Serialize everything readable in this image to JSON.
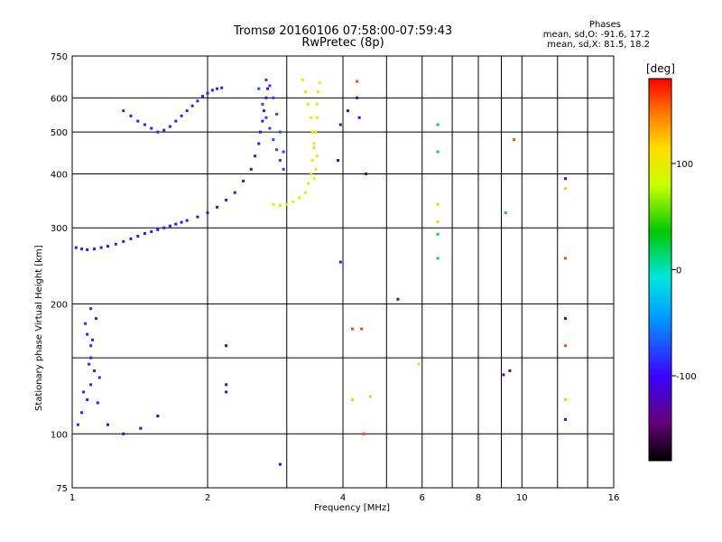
{
  "header": {
    "title_line1": "Tromsø 20160106 07:58:00-07:59:43",
    "title_line2": "RwPretec (8p)",
    "stats_title": "Phases",
    "stats_line1": "mean, sd,O: -91.6, 17.2",
    "stats_line2": "mean, sd,X:  81.5, 18.2"
  },
  "colorbar": {
    "title": "[deg]",
    "range": [
      -180,
      180
    ],
    "ticks": [
      100,
      0,
      -100
    ]
  },
  "chart_data": {
    "type": "scatter",
    "xlabel": "Frequency [MHz]",
    "ylabel": "Stationary phase Virtual Height [km]",
    "x_scale": "log",
    "y_scale": "log",
    "xlim": [
      1,
      16
    ],
    "ylim": [
      75,
      750
    ],
    "x_ticks": [
      1,
      2,
      4,
      6,
      8,
      10,
      16
    ],
    "x_minor_lines": [
      3,
      5,
      7,
      9,
      12,
      14
    ],
    "y_ticks": [
      75,
      100,
      200,
      300,
      400,
      500,
      600,
      750
    ],
    "y_minor_lines": [
      150
    ],
    "grid": true,
    "series": [
      {
        "color_phase": -95,
        "points": [
          [
            1.02,
            270
          ],
          [
            1.05,
            268
          ],
          [
            1.08,
            267
          ],
          [
            1.12,
            268
          ],
          [
            1.16,
            270
          ],
          [
            1.2,
            272
          ],
          [
            1.25,
            275
          ],
          [
            1.3,
            279
          ],
          [
            1.35,
            283
          ],
          [
            1.4,
            287
          ],
          [
            1.45,
            291
          ],
          [
            1.5,
            294
          ],
          [
            1.55,
            297
          ],
          [
            1.6,
            300
          ],
          [
            1.65,
            303
          ],
          [
            1.7,
            306
          ],
          [
            1.75,
            309
          ],
          [
            1.8,
            312
          ],
          [
            1.9,
            318
          ],
          [
            2.0,
            325
          ],
          [
            2.1,
            335
          ],
          [
            2.2,
            348
          ],
          [
            2.3,
            362
          ],
          [
            2.4,
            385
          ],
          [
            2.5,
            410
          ],
          [
            2.55,
            440
          ],
          [
            2.6,
            470
          ],
          [
            2.62,
            500
          ],
          [
            2.65,
            530
          ],
          [
            2.67,
            560
          ],
          [
            2.7,
            600
          ],
          [
            2.72,
            630
          ]
        ]
      },
      {
        "color_phase": -90,
        "points": [
          [
            1.3,
            560
          ],
          [
            1.35,
            545
          ],
          [
            1.4,
            530
          ],
          [
            1.45,
            520
          ],
          [
            1.5,
            510
          ],
          [
            1.55,
            500
          ],
          [
            1.6,
            505
          ],
          [
            1.65,
            515
          ],
          [
            1.7,
            530
          ],
          [
            1.75,
            545
          ],
          [
            1.8,
            560
          ],
          [
            1.85,
            575
          ],
          [
            1.9,
            590
          ],
          [
            1.95,
            605
          ],
          [
            2.0,
            615
          ],
          [
            2.05,
            625
          ],
          [
            2.1,
            630
          ],
          [
            2.15,
            633
          ]
        ]
      },
      {
        "color_phase": -88,
        "points": [
          [
            1.07,
            180
          ],
          [
            1.08,
            170
          ],
          [
            1.1,
            160
          ],
          [
            1.1,
            150
          ],
          [
            1.12,
            140
          ],
          [
            1.1,
            130
          ],
          [
            1.08,
            120
          ],
          [
            1.05,
            112
          ],
          [
            1.03,
            105
          ],
          [
            1.06,
            125
          ],
          [
            1.09,
            145
          ],
          [
            1.11,
            165
          ],
          [
            1.13,
            185
          ],
          [
            1.1,
            195
          ],
          [
            1.15,
            135
          ],
          [
            1.14,
            118
          ]
        ]
      },
      {
        "color_phase": -75,
        "points": [
          [
            2.6,
            630
          ],
          [
            2.65,
            580
          ],
          [
            2.7,
            540
          ],
          [
            2.75,
            510
          ],
          [
            2.8,
            480
          ],
          [
            2.85,
            455
          ],
          [
            2.9,
            430
          ],
          [
            2.95,
            410
          ],
          [
            2.95,
            450
          ],
          [
            2.9,
            500
          ],
          [
            2.85,
            550
          ],
          [
            2.8,
            600
          ],
          [
            2.75,
            640
          ],
          [
            2.7,
            660
          ]
        ]
      },
      {
        "color_phase": 95,
        "points": [
          [
            2.8,
            340
          ],
          [
            2.9,
            338
          ],
          [
            3.0,
            340
          ],
          [
            3.1,
            345
          ],
          [
            3.2,
            352
          ],
          [
            3.3,
            362
          ],
          [
            3.35,
            380
          ],
          [
            3.4,
            400
          ],
          [
            3.42,
            430
          ],
          [
            3.45,
            460
          ],
          [
            3.48,
            500
          ],
          [
            3.5,
            540
          ],
          [
            3.5,
            580
          ],
          [
            3.52,
            620
          ],
          [
            3.55,
            650
          ]
        ]
      },
      {
        "color_phase": 110,
        "points": [
          [
            3.25,
            660
          ],
          [
            3.3,
            620
          ],
          [
            3.35,
            580
          ],
          [
            3.4,
            540
          ],
          [
            3.42,
            500
          ],
          [
            3.45,
            470
          ],
          [
            3.5,
            440
          ],
          [
            3.48,
            410
          ],
          [
            3.45,
            390
          ]
        ]
      },
      {
        "color_phase": -120,
        "points": [
          [
            1.2,
            105
          ],
          [
            1.3,
            100
          ],
          [
            1.42,
            103
          ],
          [
            1.55,
            110
          ],
          [
            2.2,
            160
          ],
          [
            2.2,
            130
          ],
          [
            2.2,
            125
          ],
          [
            2.9,
            85
          ],
          [
            3.95,
            250
          ],
          [
            3.9,
            430
          ],
          [
            4.3,
            600
          ],
          [
            4.35,
            540
          ],
          [
            4.5,
            400
          ],
          [
            5.3,
            205
          ],
          [
            9.1,
            137
          ],
          [
            9.4,
            140
          ],
          [
            12.5,
            108
          ],
          [
            12.5,
            185
          ],
          [
            12.5,
            390
          ],
          [
            3.95,
            520
          ],
          [
            4.1,
            560
          ]
        ]
      },
      {
        "color_phase": 20,
        "points": [
          [
            6.5,
            520
          ],
          [
            6.5,
            450
          ],
          [
            6.5,
            290
          ],
          [
            6.5,
            255
          ],
          [
            9.2,
            325
          ]
        ]
      },
      {
        "color_phase": 120,
        "points": [
          [
            6.5,
            340
          ],
          [
            6.5,
            310
          ],
          [
            12.5,
            370
          ],
          [
            12.5,
            120
          ],
          [
            5.9,
            145
          ],
          [
            4.2,
            120
          ],
          [
            4.6,
            122
          ]
        ]
      },
      {
        "color_phase": 160,
        "points": [
          [
            9.6,
            480
          ],
          [
            12.5,
            255
          ],
          [
            12.5,
            160
          ],
          [
            4.2,
            175
          ],
          [
            4.4,
            175
          ],
          [
            4.45,
            100
          ],
          [
            4.3,
            655
          ]
        ]
      }
    ]
  }
}
